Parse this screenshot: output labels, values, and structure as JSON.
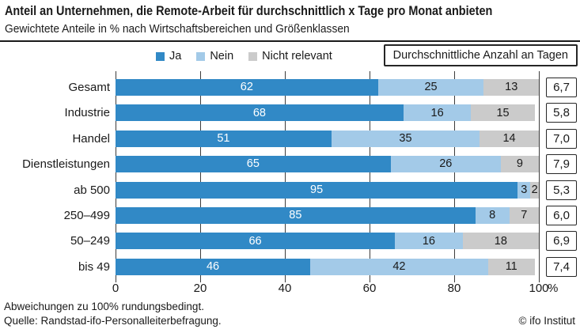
{
  "header": {
    "title": "Anteil an Unternehmen, die Remote-Arbeit für durchschnittlich x Tage pro Monat anbieten",
    "subtitle": "Gewichtete Anteile in % nach Wirtschaftsbereichen und Größenklassen"
  },
  "legend": {
    "items": [
      {
        "label": "Ja",
        "color": "#3189C6"
      },
      {
        "label": "Nein",
        "color": "#A3CAE8"
      },
      {
        "label": "Nicht relevant",
        "color": "#CBCBCB"
      }
    ],
    "box_label": "Durchschnittliche Anzahl an Tagen"
  },
  "chart_data": {
    "type": "bar",
    "orientation": "horizontal",
    "stacked": true,
    "grid": true,
    "categories": [
      "Gesamt",
      "Industrie",
      "Handel",
      "Dienstleistungen",
      "ab 500",
      "250–499",
      "50–249",
      "bis 49"
    ],
    "series": [
      {
        "name": "Ja",
        "color": "#3189C6",
        "label_color": "#ffffff",
        "values": [
          62,
          68,
          51,
          65,
          95,
          85,
          66,
          46
        ]
      },
      {
        "name": "Nein",
        "color": "#A3CAE8",
        "label_color": "#1a1a1a",
        "values": [
          25,
          16,
          35,
          26,
          3,
          8,
          16,
          42
        ]
      },
      {
        "name": "Nicht relevant",
        "color": "#CBCBCB",
        "label_color": "#1a1a1a",
        "values": [
          13,
          15,
          14,
          9,
          2,
          7,
          18,
          11
        ]
      }
    ],
    "avg_days": [
      "6,7",
      "5,8",
      "7,0",
      "7,9",
      "5,3",
      "6,0",
      "6,9",
      "7,4"
    ],
    "x_ticks": [
      0,
      20,
      40,
      60,
      80,
      100
    ],
    "x_unit": "%",
    "xlim": [
      0,
      100
    ]
  },
  "footer": {
    "note": "Abweichungen zu 100% rundungsbedingt.",
    "source": "Quelle: Randstad-ifo-Personalleiterbefragung.",
    "copyright": "© ifo Institut"
  }
}
